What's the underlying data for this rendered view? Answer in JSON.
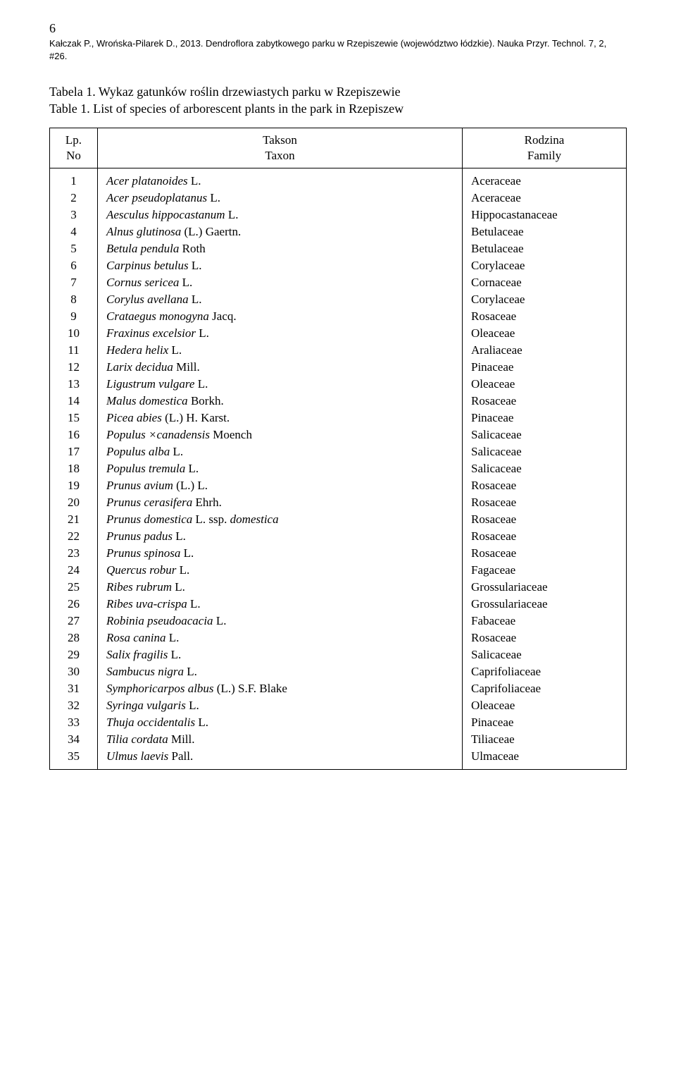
{
  "page_number": "6",
  "citation": "Kałczak P., Wrońska-Pilarek D., 2013. Dendroflora zabytkowego parku w Rzepiszewie (województwo łódzkie). Nauka Przyr. Technol. 7, 2, #26.",
  "caption_line1": "Tabela 1. Wykaz gatunków roślin drzewiastych parku w Rzepiszewie",
  "caption_line2": "Table 1. List of species of arborescent plants in the park in Rzepiszew",
  "headers": {
    "no_line1": "Lp.",
    "no_line2": "No",
    "taxon_line1": "Takson",
    "taxon_line2": "Taxon",
    "family_line1": "Rodzina",
    "family_line2": "Family"
  },
  "rows": [
    {
      "no": "1",
      "taxon_html": "<span class=\"italic\">Acer platanoides</span> L.",
      "family": "Aceraceae"
    },
    {
      "no": "2",
      "taxon_html": "<span class=\"italic\">Acer pseudoplatanus</span> L.",
      "family": "Aceraceae"
    },
    {
      "no": "3",
      "taxon_html": "<span class=\"italic\">Aesculus hippocastanum</span> L.",
      "family": "Hippocastanaceae"
    },
    {
      "no": "4",
      "taxon_html": "<span class=\"italic\">Alnus glutinosa</span> (L.) Gaertn.",
      "family": "Betulaceae"
    },
    {
      "no": "5",
      "taxon_html": "<span class=\"italic\">Betula pendula</span> Roth",
      "family": "Betulaceae"
    },
    {
      "no": "6",
      "taxon_html": "<span class=\"italic\">Carpinus betulus</span> L.",
      "family": "Corylaceae"
    },
    {
      "no": "7",
      "taxon_html": "<span class=\"italic\">Cornus sericea</span> L.",
      "family": "Cornaceae"
    },
    {
      "no": "8",
      "taxon_html": "<span class=\"italic\">Corylus avellana</span> L.",
      "family": "Corylaceae"
    },
    {
      "no": "9",
      "taxon_html": "<span class=\"italic\">Crataegus monogyna</span> Jacq.",
      "family": "Rosaceae"
    },
    {
      "no": "10",
      "taxon_html": "<span class=\"italic\">Fraxinus excelsior</span> L.",
      "family": "Oleaceae"
    },
    {
      "no": "11",
      "taxon_html": "<span class=\"italic\">Hedera helix</span> L.",
      "family": "Araliaceae"
    },
    {
      "no": "12",
      "taxon_html": "<span class=\"italic\">Larix decidua</span> Mill.",
      "family": "Pinaceae"
    },
    {
      "no": "13",
      "taxon_html": "<span class=\"italic\">Ligustrum vulgare</span> L.",
      "family": "Oleaceae"
    },
    {
      "no": "14",
      "taxon_html": "<span class=\"italic\">Malus domestica</span> Borkh.",
      "family": "Rosaceae"
    },
    {
      "no": "15",
      "taxon_html": "<span class=\"italic\">Picea abies</span> (L.) H. Karst.",
      "family": "Pinaceae"
    },
    {
      "no": "16",
      "taxon_html": "<span class=\"italic\">Populus ×canadensis</span> Moench",
      "family": "Salicaceae"
    },
    {
      "no": "17",
      "taxon_html": "<span class=\"italic\">Populus alba</span> L.",
      "family": "Salicaceae"
    },
    {
      "no": "18",
      "taxon_html": "<span class=\"italic\">Populus tremula</span> L.",
      "family": "Salicaceae"
    },
    {
      "no": "19",
      "taxon_html": "<span class=\"italic\">Prunus avium</span> (L.) L.",
      "family": "Rosaceae"
    },
    {
      "no": "20",
      "taxon_html": "<span class=\"italic\">Prunus cerasifera</span> Ehrh.",
      "family": "Rosaceae"
    },
    {
      "no": "21",
      "taxon_html": "<span class=\"italic\">Prunus domestica</span> L. ssp. <span class=\"italic\">domestica</span>",
      "family": "Rosaceae"
    },
    {
      "no": "22",
      "taxon_html": "<span class=\"italic\">Prunus padus</span> L.",
      "family": "Rosaceae"
    },
    {
      "no": "23",
      "taxon_html": "<span class=\"italic\">Prunus spinosa</span> L.",
      "family": "Rosaceae"
    },
    {
      "no": "24",
      "taxon_html": "<span class=\"italic\">Quercus robur</span> L.",
      "family": "Fagaceae"
    },
    {
      "no": "25",
      "taxon_html": "<span class=\"italic\">Ribes rubrum</span> L.",
      "family": "Grossulariaceae"
    },
    {
      "no": "26",
      "taxon_html": "<span class=\"italic\">Ribes uva-crispa</span> L.",
      "family": "Grossulariaceae"
    },
    {
      "no": "27",
      "taxon_html": "<span class=\"italic\">Robinia pseudoacacia</span> L.",
      "family": "Fabaceae"
    },
    {
      "no": "28",
      "taxon_html": "<span class=\"italic\">Rosa canina</span> L.",
      "family": "Rosaceae"
    },
    {
      "no": "29",
      "taxon_html": "<span class=\"italic\">Salix fragilis</span> L.",
      "family": "Salicaceae"
    },
    {
      "no": "30",
      "taxon_html": "<span class=\"italic\">Sambucus nigra</span> L.",
      "family": "Caprifoliaceae"
    },
    {
      "no": "31",
      "taxon_html": "<span class=\"italic\">Symphoricarpos albus</span> (L.) S.F. Blake",
      "family": "Caprifoliaceae"
    },
    {
      "no": "32",
      "taxon_html": "<span class=\"italic\">Syringa vulgaris</span> L.",
      "family": "Oleaceae"
    },
    {
      "no": "33",
      "taxon_html": "<span class=\"italic\">Thuja occidentalis</span> L.",
      "family": "Pinaceae"
    },
    {
      "no": "34",
      "taxon_html": "<span class=\"italic\">Tilia cordata</span> Mill.",
      "family": "Tiliaceae"
    },
    {
      "no": "35",
      "taxon_html": "<span class=\"italic\">Ulmus laevis</span> Pall.",
      "family": "Ulmaceae"
    }
  ]
}
